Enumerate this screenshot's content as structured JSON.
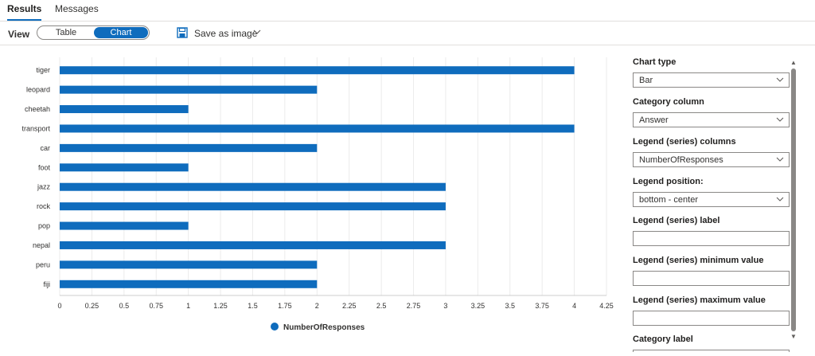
{
  "tabs": [
    {
      "label": "Results",
      "active": true
    },
    {
      "label": "Messages",
      "active": false
    }
  ],
  "toolbar": {
    "view_label": "View",
    "view_options": [
      "Table",
      "Chart"
    ],
    "selected_view": "Chart",
    "save_label": "Save as image"
  },
  "chart_data": {
    "type": "bar",
    "orientation": "horizontal",
    "categories": [
      "tiger",
      "leopard",
      "cheetah",
      "transport",
      "car",
      "foot",
      "jazz",
      "rock",
      "pop",
      "nepal",
      "peru",
      "fiji"
    ],
    "series": [
      {
        "name": "NumberOfResponses",
        "values": [
          4,
          2,
          1,
          4,
          2,
          1,
          3,
          3,
          1,
          3,
          2,
          2
        ],
        "color": "#0f6cbd"
      }
    ],
    "x_ticks": [
      "0",
      "0.25",
      "0.5",
      "0.75",
      "1",
      "1.25",
      "1.5",
      "1.75",
      "2",
      "2.25",
      "2.5",
      "2.75",
      "3",
      "3.25",
      "3.5",
      "3.75",
      "4",
      "4.25"
    ],
    "xlim": [
      0,
      4.25
    ],
    "grid": true,
    "legend_position": "bottom-center"
  },
  "panel": {
    "fields": [
      {
        "label": "Chart type",
        "value": "Bar",
        "dropdown": true
      },
      {
        "label": "Category column",
        "value": "Answer",
        "dropdown": true
      },
      {
        "label": "Legend (series) columns",
        "value": "NumberOfResponses",
        "dropdown": true
      },
      {
        "label": "Legend position:",
        "value": "bottom - center",
        "dropdown": true
      },
      {
        "label": "Legend (series) label",
        "value": "",
        "dropdown": false
      },
      {
        "label": "Legend (series) minimum value",
        "value": "",
        "dropdown": false
      },
      {
        "label": "Legend (series) maximum value",
        "value": "",
        "dropdown": false
      },
      {
        "label": "Category label",
        "value": "",
        "dropdown": false
      }
    ]
  },
  "colors": {
    "accent": "#0f6cbd"
  }
}
